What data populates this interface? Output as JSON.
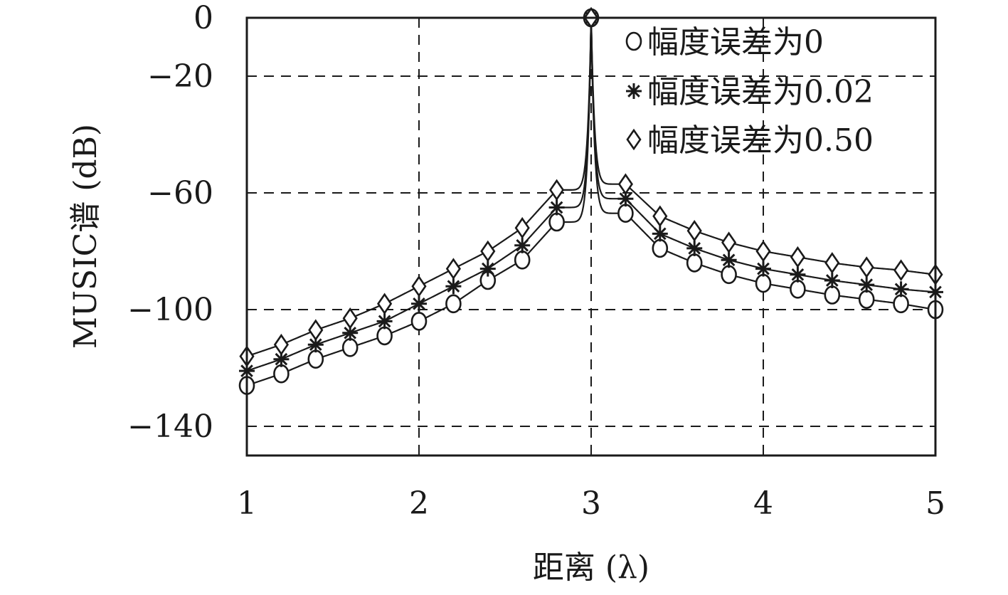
{
  "chart_data": {
    "type": "line",
    "xlabel": "距离 (λ)",
    "ylabel": "MUSIC谱 (dB)",
    "xlim": [
      1,
      5
    ],
    "ylim": [
      -150,
      0
    ],
    "xticks": [
      1,
      2,
      3,
      4,
      5
    ],
    "yticks": [
      0,
      -20,
      -60,
      -100,
      -140
    ],
    "xtick_labels": [
      "1",
      "2",
      "3",
      "4",
      "5"
    ],
    "ytick_labels": [
      "0",
      "−20",
      "−60",
      "−100",
      "−140"
    ],
    "grid": true,
    "legend_position": "top-right",
    "x": [
      1.0,
      1.2,
      1.4,
      1.6,
      1.8,
      2.0,
      2.2,
      2.4,
      2.6,
      2.8,
      3.0,
      3.2,
      3.4,
      3.6,
      3.8,
      4.0,
      4.2,
      4.4,
      4.6,
      4.8,
      5.0
    ],
    "series": [
      {
        "name": "幅度误差为0",
        "marker": "circle",
        "values": [
          -126,
          -122,
          -117,
          -113,
          -109,
          -104,
          -98,
          -90,
          -83,
          -70,
          0,
          -67,
          -79,
          -84,
          -88,
          -91,
          -93,
          -95,
          -96.5,
          -98,
          -100
        ]
      },
      {
        "name": "幅度误差为0.02",
        "marker": "star",
        "values": [
          -121,
          -117,
          -112,
          -108,
          -104,
          -98,
          -92,
          -86,
          -78,
          -65,
          0,
          -62,
          -74,
          -79,
          -83,
          -86,
          -88,
          -90,
          -91.5,
          -93,
          -94
        ]
      },
      {
        "name": "幅度误差为0.50",
        "marker": "diamond",
        "values": [
          -116,
          -112,
          -107,
          -103,
          -98,
          -92,
          -86,
          -80,
          -72,
          -59,
          0,
          -57,
          -68,
          -73,
          -77,
          -80,
          -82,
          -84,
          -85.5,
          -86.5,
          -88
        ]
      }
    ]
  }
}
